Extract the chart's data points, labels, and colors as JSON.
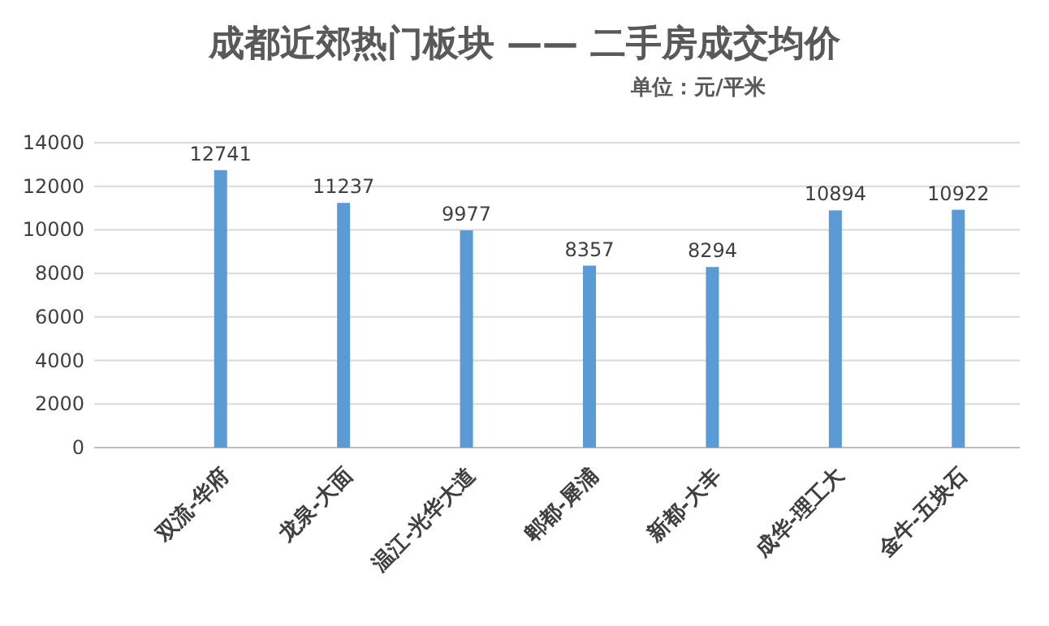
{
  "chart_data": {
    "type": "bar",
    "title": "成都近郊热门板块 —— 二手房成交均价",
    "subtitle": "单位：元/平米",
    "categories": [
      "双流-华府",
      "龙泉-大面",
      "温江-光华大道",
      "郫都-犀浦",
      "新都-大丰",
      "成华-理工大",
      "金牛-五块石"
    ],
    "values": [
      12741,
      11237,
      9977,
      8357,
      8294,
      10894,
      10922
    ],
    "color": "#5b9bd5",
    "ylim": [
      0,
      14000
    ],
    "yticks": [
      0,
      2000,
      4000,
      6000,
      8000,
      10000,
      12000,
      14000
    ],
    "grid": "y",
    "data_labels": true
  }
}
